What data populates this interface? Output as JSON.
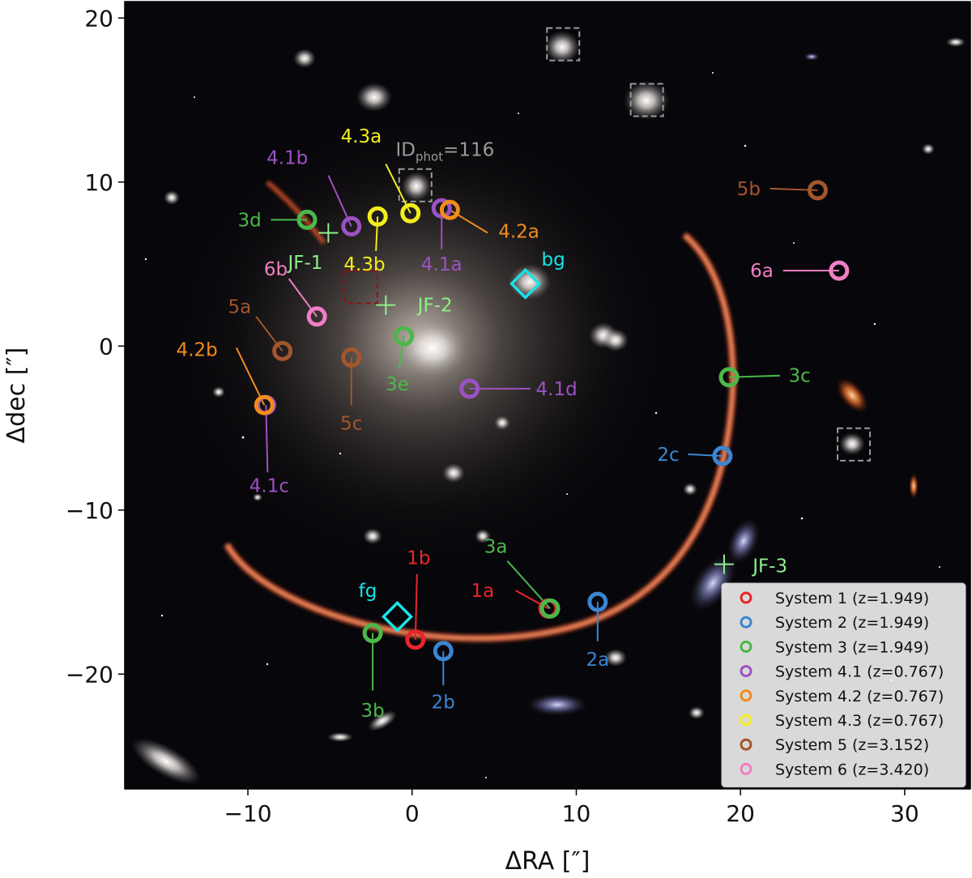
{
  "chart_data": {
    "type": "scatter",
    "xlabel": "ΔRA [″]",
    "ylabel": "Δdec [″]",
    "xlim": [
      -17.5,
      34
    ],
    "ylim": [
      -27,
      21
    ],
    "x_ticks": [
      -10,
      0,
      10,
      20,
      30
    ],
    "x_tick_labels": [
      "−10",
      "0",
      "10",
      "20",
      "30"
    ],
    "y_ticks": [
      -20,
      -10,
      0,
      10,
      20
    ],
    "y_tick_labels": [
      "−20",
      "−10",
      "0",
      "10",
      "20"
    ],
    "grid": false,
    "legend_position": "bottom-right",
    "colors": {
      "s1": "#e8262a",
      "s2": "#3a86d1",
      "s3": "#4bb84a",
      "s41": "#9c52c2",
      "s42": "#f28c1b",
      "s43": "#f2ee1b",
      "s5": "#a3562c",
      "s6": "#ef7fc4",
      "cyan": "#18e3e6",
      "jf": "#8ef08a",
      "gray": "#9a9a9a",
      "darkred": "#8a1515"
    },
    "series": [
      {
        "name": "System 1 (z=1.949)",
        "color_key": "s1",
        "images": [
          {
            "label": "1a",
            "x": 8.3,
            "y": -16.0,
            "lx": 4.3,
            "ly": -14.9,
            "ex": 6.3,
            "ey": -14.9
          },
          {
            "label": "1b",
            "x": 0.2,
            "y": -17.9,
            "lx": 0.4,
            "ly": -12.9,
            "ex": 0.3,
            "ey": -13.9
          }
        ]
      },
      {
        "name": "System 2 (z=1.949)",
        "color_key": "s2",
        "images": [
          {
            "label": "2a",
            "x": 11.3,
            "y": -15.6,
            "lx": 11.3,
            "ly": -19.1,
            "ex": 11.3,
            "ey": -18.0
          },
          {
            "label": "2b",
            "x": 1.9,
            "y": -18.6,
            "lx": 1.9,
            "ly": -21.7,
            "ex": 1.9,
            "ey": -20.7
          },
          {
            "label": "2c",
            "x": 18.9,
            "y": -6.7,
            "lx": 15.6,
            "ly": -6.6,
            "ex": 16.8,
            "ey": -6.6
          }
        ]
      },
      {
        "name": "System 3 (z=1.949)",
        "color_key": "s3",
        "images": [
          {
            "label": "3a",
            "x": 8.4,
            "y": -16.0,
            "lx": 5.1,
            "ly": -12.2,
            "ex": 5.8,
            "ey": -13.1
          },
          {
            "label": "3b",
            "x": -2.4,
            "y": -17.5,
            "lx": -2.4,
            "ly": -22.2,
            "ex": -2.4,
            "ey": -21.0
          },
          {
            "label": "3c",
            "x": 19.3,
            "y": -1.9,
            "lx": 23.6,
            "ly": -1.8,
            "ex": 22.4,
            "ey": -1.8
          },
          {
            "label": "3d",
            "x": -6.4,
            "y": 7.7,
            "lx": -9.9,
            "ly": 7.7,
            "ex": -8.6,
            "ey": 7.7
          },
          {
            "label": "3e",
            "x": -0.5,
            "y": 0.6,
            "lx": -0.9,
            "ly": -2.3,
            "ex": -0.8,
            "ey": -1.4
          }
        ]
      },
      {
        "name": "System 4.1 (z=0.767)",
        "color_key": "s41",
        "images": [
          {
            "label": "4.1a",
            "x": 1.8,
            "y": 8.4,
            "lx": 1.8,
            "ly": 5.0,
            "ex": 1.8,
            "ey": 5.9
          },
          {
            "label": "4.1b",
            "x": -3.7,
            "y": 7.3,
            "lx": -7.6,
            "ly": 11.5,
            "ex": -5.1,
            "ey": 10.4
          },
          {
            "label": "4.1c",
            "x": -8.9,
            "y": -3.6,
            "lx": -8.7,
            "ly": -8.5,
            "ex": -8.8,
            "ey": -7.7
          },
          {
            "label": "4.1d",
            "x": 3.5,
            "y": -2.6,
            "lx": 8.8,
            "ly": -2.6,
            "ex": 7.2,
            "ey": -2.6
          }
        ]
      },
      {
        "name": "System 4.2 (z=0.767)",
        "color_key": "s42",
        "images": [
          {
            "label": "4.2a",
            "x": 2.3,
            "y": 8.3,
            "lx": 6.5,
            "ly": 7.0,
            "ex": 4.6,
            "ey": 6.9
          },
          {
            "label": "4.2b",
            "x": -9.0,
            "y": -3.6,
            "lx": -13.1,
            "ly": -0.2,
            "ex": -10.7,
            "ey": -0.1
          }
        ]
      },
      {
        "name": "System 4.3 (z=0.767)",
        "color_key": "s43",
        "images": [
          {
            "label": "4.3a",
            "x": -0.1,
            "y": 8.1,
            "lx": -3.1,
            "ly": 12.8,
            "ex": -1.6,
            "ey": 11.1
          },
          {
            "label": "4.3b",
            "x": -2.1,
            "y": 7.9,
            "lx": -2.9,
            "ly": 5.0,
            "ex": -2.2,
            "ey": 5.8
          }
        ]
      },
      {
        "name": "System 5 (z=3.152)",
        "color_key": "s5",
        "images": [
          {
            "label": "5a",
            "x": -7.9,
            "y": -0.3,
            "lx": -10.5,
            "ly": 2.4,
            "ex": -9.5,
            "ey": 1.8
          },
          {
            "label": "5b",
            "x": 24.7,
            "y": 9.5,
            "lx": 20.5,
            "ly": 9.6,
            "ex": 21.8,
            "ey": 9.6
          },
          {
            "label": "5c",
            "x": -3.7,
            "y": -0.7,
            "lx": -3.7,
            "ly": -4.7,
            "ex": -3.7,
            "ey": -3.6
          }
        ]
      },
      {
        "name": "System 6 (z=3.420)",
        "color_key": "s6",
        "images": [
          {
            "label": "6a",
            "x": 26.0,
            "y": 4.6,
            "lx": 21.3,
            "ly": 4.6,
            "ex": 22.6,
            "ey": 4.6
          },
          {
            "label": "6b",
            "x": -5.8,
            "y": 1.8,
            "lx": -8.3,
            "ly": 4.7,
            "ex": -7.5,
            "ey": 4.1
          }
        ]
      }
    ],
    "markers": {
      "jf": [
        {
          "label": "JF-1",
          "x": -5.1,
          "y": 6.9,
          "lx": -6.5,
          "ly": 5.1,
          "lc": "jf"
        },
        {
          "label": "JF-2",
          "x": -1.6,
          "y": 2.5,
          "lx": 1.4,
          "ly": 2.5,
          "lc": "jf"
        },
        {
          "label": "JF-3",
          "x": 19.0,
          "y": -13.3,
          "lx": 21.8,
          "ly": -13.4,
          "lc": "jf"
        }
      ],
      "diamonds": [
        {
          "label": "bg",
          "x": 6.9,
          "y": 3.8,
          "lx": 8.6,
          "ly": 5.3,
          "lc": "cyan"
        },
        {
          "label": "fg",
          "x": -0.9,
          "y": -16.5,
          "lx": -2.7,
          "ly": -14.9,
          "lc": "cyan"
        }
      ],
      "boxes": [
        {
          "x": 9.2,
          "y": 18.4,
          "color_key": "gray"
        },
        {
          "x": 14.3,
          "y": 15.0,
          "color_key": "gray"
        },
        {
          "x": 0.2,
          "y": 9.8,
          "color_key": "gray"
        },
        {
          "x": 26.9,
          "y": -6.0,
          "color_key": "gray"
        },
        {
          "x": -3.1,
          "y": 3.6,
          "color_key": "darkred"
        }
      ]
    },
    "id_label": {
      "main": "ID",
      "sub": "phot",
      "value": "=116",
      "lx": -1.0,
      "ly": 12.0
    }
  }
}
